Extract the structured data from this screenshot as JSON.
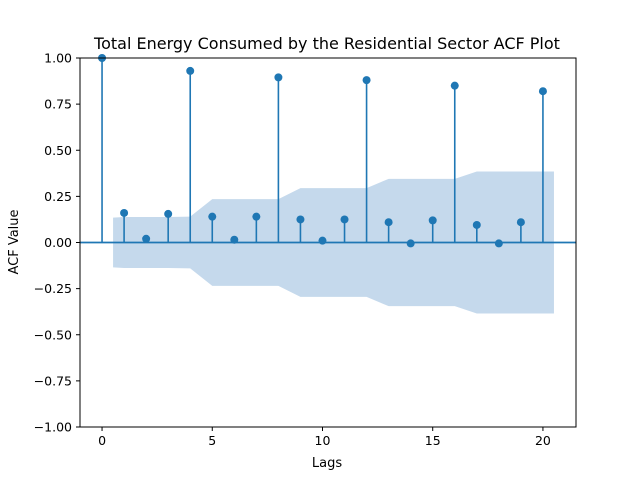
{
  "chart_data": {
    "type": "stem",
    "title": "Total Energy Consumed by the Residential Sector ACF Plot",
    "xlabel": "Lags",
    "ylabel": "ACF Value",
    "xlim": [
      -1.0,
      21.5
    ],
    "ylim": [
      -1.0,
      1.0
    ],
    "xticks": [
      "0",
      "5",
      "10",
      "15",
      "20"
    ],
    "yticks": [
      "−1.00",
      "−0.75",
      "−0.50",
      "−0.25",
      "0.00",
      "0.25",
      "0.50",
      "0.75",
      "1.00"
    ],
    "grid": false,
    "lags": [
      0,
      1,
      2,
      3,
      4,
      5,
      6,
      7,
      8,
      9,
      10,
      11,
      12,
      13,
      14,
      15,
      16,
      17,
      18,
      19,
      20
    ],
    "acf": [
      1.0,
      0.16,
      0.02,
      0.155,
      0.93,
      0.14,
      0.015,
      0.14,
      0.895,
      0.125,
      0.01,
      0.125,
      0.88,
      0.11,
      -0.005,
      0.12,
      0.85,
      0.095,
      -0.005,
      0.11,
      0.82
    ],
    "confidence_band": {
      "lags": [
        0.5,
        1,
        2,
        3,
        4,
        5,
        6,
        7,
        8,
        9,
        10,
        11,
        12,
        13,
        14,
        15,
        16,
        17,
        18,
        19,
        20,
        20.5
      ],
      "upper": [
        0.135,
        0.138,
        0.138,
        0.138,
        0.14,
        0.235,
        0.235,
        0.235,
        0.235,
        0.295,
        0.295,
        0.295,
        0.295,
        0.345,
        0.345,
        0.345,
        0.345,
        0.385,
        0.385,
        0.385,
        0.385,
        0.385
      ]
    },
    "colors": {
      "stem": "#1f77b4",
      "band": "#c5d9ec",
      "axis": "#000000"
    }
  }
}
